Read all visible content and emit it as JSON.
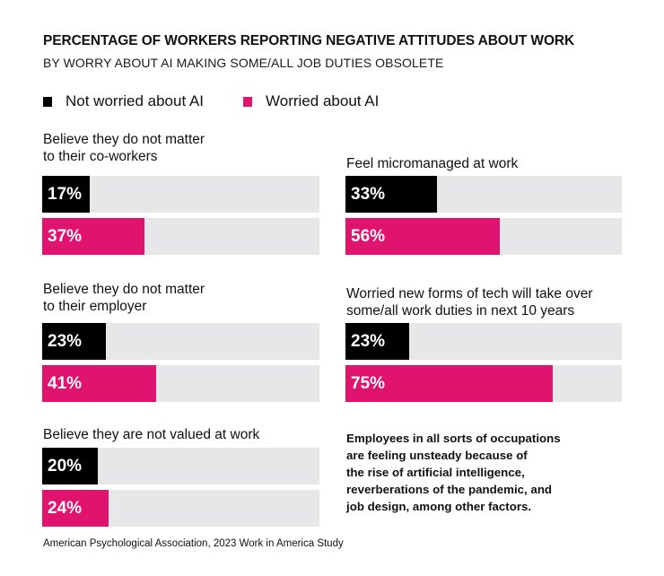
{
  "colors": {
    "not_worried": "#000000",
    "worried": "#e0136f",
    "track": "#e6e7e8"
  },
  "chart_data": {
    "type": "bar",
    "orientation": "horizontal",
    "title": "PERCENTAGE OF WORKERS REPORTING NEGATIVE ATTITUDES ABOUT WORK",
    "subtitle": "BY WORRY ABOUT AI MAKING SOME/ALL JOB DUTIES OBSOLETE",
    "xlim": [
      0,
      100
    ],
    "unit": "%",
    "legend": {
      "placement": "top-left",
      "entries": [
        "Not worried about AI",
        "Worried about AI"
      ]
    },
    "categories": [
      "Believe they do not matter to their co-workers",
      "Believe they do not matter to their employer",
      "Believe they are not valued at work",
      "Feel micromanaged at work",
      "Worried new forms of tech will take over some/all work duties in next 10 years"
    ],
    "series": [
      {
        "name": "Not worried about AI",
        "values": [
          17,
          23,
          20,
          33,
          23
        ]
      },
      {
        "name": "Worried about AI",
        "values": [
          37,
          41,
          24,
          56,
          75
        ]
      }
    ],
    "groups": [
      {
        "label_lines": [
          "Believe they do not matter",
          "to their co-workers"
        ],
        "bars": [
          {
            "series": "Not worried about AI",
            "value": 17,
            "label": "17%"
          },
          {
            "series": "Worried about AI",
            "value": 37,
            "label": "37%"
          }
        ]
      },
      {
        "label_lines": [
          "Believe they do not matter",
          "to their employer"
        ],
        "bars": [
          {
            "series": "Not worried about AI",
            "value": 23,
            "label": "23%"
          },
          {
            "series": "Worried about AI",
            "value": 41,
            "label": "41%"
          }
        ]
      },
      {
        "label_lines": [
          "Believe they are not valued at work"
        ],
        "bars": [
          {
            "series": "Not worried about AI",
            "value": 20,
            "label": "20%"
          },
          {
            "series": "Worried about AI",
            "value": 24,
            "label": "24%"
          }
        ]
      },
      {
        "label_lines": [
          "Feel micromanaged at work"
        ],
        "bars": [
          {
            "series": "Not worried about AI",
            "value": 33,
            "label": "33%"
          },
          {
            "series": "Worried about AI",
            "value": 56,
            "label": "56%"
          }
        ]
      },
      {
        "label_lines": [
          "Worried new forms of tech will take over",
          "some/all work duties in next 10 years"
        ],
        "bars": [
          {
            "series": "Not worried about AI",
            "value": 23,
            "label": "23%"
          },
          {
            "series": "Worried about AI",
            "value": 75,
            "label": "75%"
          }
        ]
      }
    ],
    "annotation_lines": [
      "Employees in all sorts of occupations",
      "are feeling unsteady because of",
      "the rise of artificial intelligence,",
      "reverberations of the pandemic, and",
      "job design, among other factors."
    ],
    "source": "American Psychological Association,  2023 Work in America Study"
  }
}
